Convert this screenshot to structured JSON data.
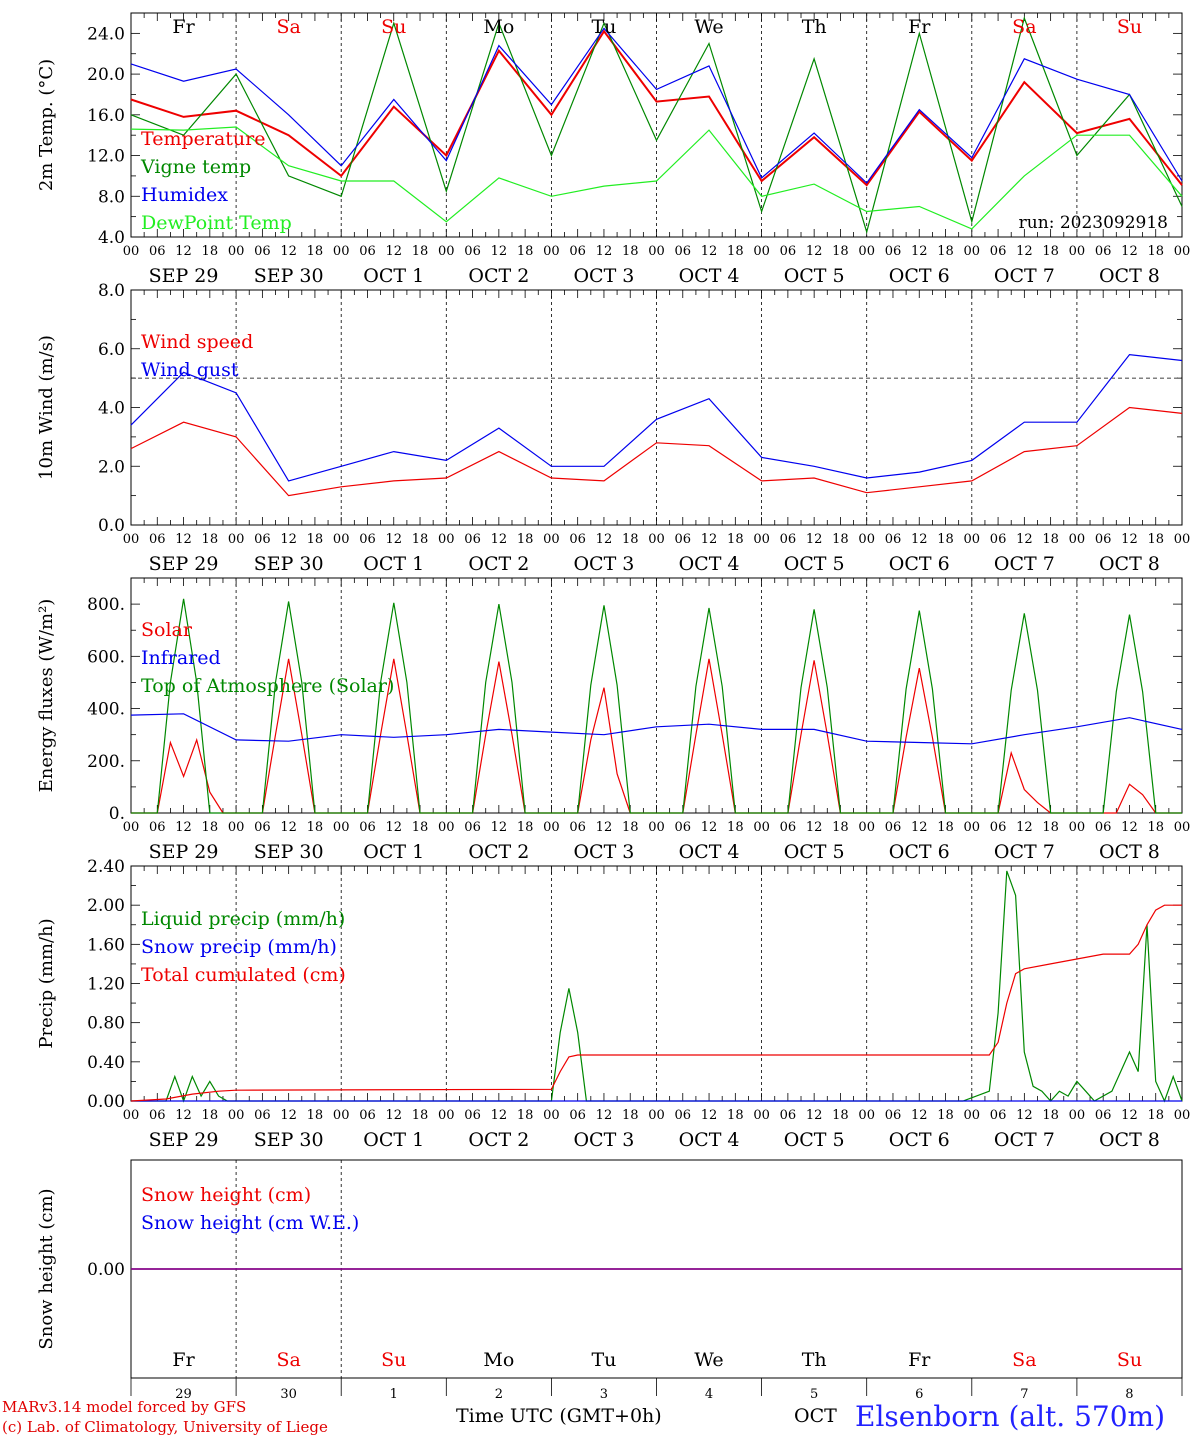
{
  "colors": {
    "red": "#ee0000",
    "green": "#008800",
    "blue": "#0000ee",
    "lightgreen": "#22ee22",
    "purple": "#880088",
    "weekend": "#ee0000",
    "weekday": "#000000"
  },
  "hour_ticks": [
    "00",
    "06",
    "12",
    "18"
  ],
  "date_labels": [
    "SEP 29",
    "SEP 30",
    "OCT  1",
    "OCT  2",
    "OCT  3",
    "OCT  4",
    "OCT  5",
    "OCT  6",
    "OCT  7",
    "OCT  8"
  ],
  "day_names": [
    {
      "name": "Fr",
      "weekend": false
    },
    {
      "name": "Sa",
      "weekend": true
    },
    {
      "name": "Su",
      "weekend": true
    },
    {
      "name": "Mo",
      "weekend": false
    },
    {
      "name": "Tu",
      "weekend": false
    },
    {
      "name": "We",
      "weekend": false
    },
    {
      "name": "Th",
      "weekend": false
    },
    {
      "name": "Fr",
      "weekend": false
    },
    {
      "name": "Sa",
      "weekend": true
    },
    {
      "name": "Su",
      "weekend": true
    }
  ],
  "day_numbers": [
    "29",
    "30",
    "1",
    "2",
    "3",
    "4",
    "5",
    "6",
    "7",
    "8"
  ],
  "footer": {
    "credit_line1": "MARv3.14 model forced by GFS",
    "credit_line2": "(c) Lab. of Climatology, University of Liege",
    "x_axis_title": "Time UTC (GMT+0h)",
    "month": "OCT",
    "station": "Elsenborn (alt. 570m)"
  },
  "chart_data": [
    {
      "type": "line",
      "ylabel": "2m Temp. (°C)",
      "ylim": [
        4,
        26
      ],
      "yticks": [
        "4.0",
        "8.0",
        "12.0",
        "16.0",
        "20.0",
        "24.0"
      ],
      "annotation": "run: 2023092918",
      "x": [
        0,
        12,
        24,
        36,
        48,
        60,
        72,
        84,
        96,
        108,
        120,
        132,
        144,
        156,
        168,
        180,
        192,
        204,
        216,
        228,
        240
      ],
      "series": [
        {
          "name": "Temperature",
          "color": "red",
          "values": [
            17.5,
            15.8,
            16.4,
            14.0,
            10.0,
            16.8,
            12.0,
            22.3,
            16.0,
            24.2,
            17.3,
            17.8,
            9.5,
            13.8,
            9.1,
            16.3,
            11.5,
            19.2,
            14.2,
            15.6,
            9.1
          ]
        },
        {
          "name": "Vigne temp",
          "color": "green",
          "values": [
            16.0,
            14.0,
            20.0,
            10.0,
            8.0,
            25.0,
            8.5,
            25.0,
            12.0,
            25.0,
            13.5,
            23.0,
            6.5,
            21.5,
            4.5,
            24.0,
            5.5,
            25.5,
            12.0,
            18.0,
            7.0
          ]
        },
        {
          "name": "Humidex",
          "color": "blue",
          "values": [
            21.0,
            19.3,
            20.5,
            16.0,
            11.0,
            17.5,
            11.5,
            22.8,
            17.0,
            24.5,
            18.5,
            20.8,
            9.8,
            14.2,
            9.3,
            16.5,
            11.8,
            21.5,
            19.5,
            18.0,
            9.5
          ]
        },
        {
          "name": "DewPoint Temp",
          "color": "lightgreen",
          "values": [
            14.6,
            14.5,
            14.8,
            11.0,
            9.5,
            9.5,
            5.5,
            9.8,
            8.0,
            9.0,
            9.5,
            14.5,
            8.0,
            9.2,
            6.5,
            7.0,
            4.8,
            10.0,
            14.0,
            14.0,
            8.0
          ]
        }
      ]
    },
    {
      "type": "line",
      "ylabel": "10m Wind (m/s)",
      "ylim": [
        0,
        8
      ],
      "yticks": [
        "0.0",
        "2.0",
        "4.0",
        "6.0",
        "8.0"
      ],
      "reference_line": 5.0,
      "x": [
        0,
        12,
        24,
        36,
        48,
        60,
        72,
        84,
        96,
        108,
        120,
        132,
        144,
        156,
        168,
        180,
        192,
        204,
        216,
        228,
        240
      ],
      "series": [
        {
          "name": "Wind speed",
          "color": "red",
          "values": [
            2.6,
            3.5,
            3.0,
            1.0,
            1.3,
            1.5,
            1.6,
            2.5,
            1.6,
            1.5,
            2.8,
            2.7,
            1.5,
            1.6,
            1.1,
            1.3,
            1.5,
            2.5,
            2.7,
            4.0,
            3.8
          ]
        },
        {
          "name": "Wind gust",
          "color": "blue",
          "values": [
            3.4,
            5.2,
            4.5,
            1.5,
            2.0,
            2.5,
            2.2,
            3.3,
            2.0,
            2.0,
            3.6,
            4.3,
            2.3,
            2.0,
            1.6,
            1.8,
            2.2,
            3.5,
            3.5,
            5.8,
            5.6
          ]
        }
      ]
    },
    {
      "type": "line",
      "ylabel": "Energy fluxes (W/m²)",
      "ylim": [
        0,
        900
      ],
      "yticks": [
        "0.",
        "200.",
        "400.",
        "600.",
        "800."
      ],
      "x": [
        0,
        6,
        9,
        12,
        15,
        18,
        21,
        24,
        30,
        33,
        36,
        39,
        42,
        45,
        48,
        54,
        57,
        60,
        63,
        66,
        69,
        72,
        78,
        81,
        84,
        87,
        90,
        93,
        96,
        102,
        105,
        108,
        111,
        114,
        117,
        120,
        126,
        129,
        132,
        135,
        138,
        141,
        144,
        150,
        153,
        156,
        159,
        162,
        165,
        168,
        174,
        177,
        180,
        183,
        186,
        189,
        192,
        198,
        201,
        204,
        207,
        210,
        213,
        216,
        222,
        225,
        228,
        231,
        234,
        237,
        240
      ],
      "series": [
        {
          "name": "Solar",
          "color": "red",
          "values": [
            0,
            0,
            270,
            140,
            280,
            80,
            0,
            0,
            0,
            300,
            590,
            300,
            0,
            0,
            0,
            0,
            300,
            590,
            300,
            0,
            0,
            0,
            0,
            300,
            580,
            300,
            0,
            0,
            0,
            0,
            280,
            480,
            150,
            0,
            0,
            0,
            0,
            300,
            590,
            300,
            0,
            0,
            0,
            0,
            300,
            585,
            300,
            0,
            0,
            0,
            0,
            290,
            555,
            290,
            0,
            0,
            0,
            0,
            230,
            90,
            40,
            0,
            0,
            0,
            0,
            0,
            110,
            70,
            0,
            0,
            0
          ]
        },
        {
          "name": "Top of Atmosphere (Solar)",
          "color": "green",
          "values": [
            0,
            0,
            500,
            820,
            500,
            0,
            0,
            0,
            0,
            500,
            810,
            500,
            0,
            0,
            0,
            0,
            500,
            805,
            500,
            0,
            0,
            0,
            0,
            500,
            800,
            500,
            0,
            0,
            0,
            0,
            490,
            795,
            490,
            0,
            0,
            0,
            0,
            485,
            785,
            485,
            0,
            0,
            0,
            0,
            480,
            780,
            480,
            0,
            0,
            0,
            0,
            475,
            775,
            475,
            0,
            0,
            0,
            0,
            470,
            765,
            470,
            0,
            0,
            0,
            0,
            465,
            760,
            465,
            0,
            0,
            0
          ]
        }
      ],
      "infrared": {
        "name": "Infrared",
        "color": "blue",
        "x": [
          0,
          12,
          24,
          36,
          48,
          60,
          72,
          84,
          96,
          108,
          120,
          132,
          144,
          156,
          168,
          180,
          192,
          204,
          216,
          228,
          240
        ],
        "values": [
          375,
          380,
          280,
          275,
          300,
          290,
          300,
          320,
          310,
          300,
          330,
          340,
          320,
          320,
          275,
          270,
          265,
          300,
          330,
          365,
          320
        ]
      }
    },
    {
      "type": "line",
      "ylabel": "Precip (mm/h)",
      "ylim": [
        0,
        2.4
      ],
      "yticks": [
        "0.00",
        "0.40",
        "0.80",
        "1.20",
        "1.60",
        "2.00",
        "2.40"
      ],
      "series": [
        {
          "name": "Liquid precip (mm/h)",
          "color": "green",
          "x": [
            0,
            8,
            10,
            12,
            14,
            16,
            18,
            20,
            22,
            24,
            96,
            98,
            100,
            102,
            104,
            106,
            190,
            196,
            198,
            200,
            202,
            204,
            206,
            208,
            210,
            212,
            214,
            216,
            218,
            220,
            224,
            228,
            230,
            232,
            234,
            236,
            238,
            240
          ],
          "values": [
            0,
            0,
            0.25,
            0.0,
            0.25,
            0.05,
            0.2,
            0.05,
            0.0,
            0,
            0,
            0.7,
            1.15,
            0.7,
            0.0,
            0,
            0,
            0.1,
            0.9,
            2.35,
            2.1,
            0.5,
            0.15,
            0.1,
            0.0,
            0.1,
            0.05,
            0.2,
            0.1,
            0.0,
            0.1,
            0.5,
            0.3,
            1.8,
            0.2,
            0.0,
            0.25,
            0
          ]
        },
        {
          "name": "Snow precip (mm/h)",
          "color": "blue",
          "x": [
            0,
            240
          ],
          "values": [
            0,
            0
          ]
        },
        {
          "name": "Total cumulated (cm)",
          "color": "red",
          "x": [
            0,
            8,
            14,
            20,
            24,
            96,
            98,
            100,
            102,
            108,
            144,
            168,
            196,
            198,
            200,
            202,
            204,
            210,
            216,
            222,
            228,
            230,
            232,
            234,
            236,
            240
          ],
          "values": [
            0,
            0.02,
            0.07,
            0.1,
            0.11,
            0.12,
            0.3,
            0.45,
            0.47,
            0.47,
            0.47,
            0.47,
            0.47,
            0.6,
            1.0,
            1.3,
            1.35,
            1.4,
            1.45,
            1.5,
            1.5,
            1.6,
            1.8,
            1.95,
            2.0,
            2.0
          ]
        }
      ]
    },
    {
      "type": "line",
      "ylabel": "Snow height (cm)",
      "ylim": [
        -1,
        1
      ],
      "yticks": [
        "0.00"
      ],
      "x": [
        0,
        240
      ],
      "series": [
        {
          "name": "Snow height (cm)",
          "color": "red",
          "values": [
            0,
            0
          ]
        },
        {
          "name": "Snow height (cm W.E.)",
          "color": "blue",
          "values": [
            0,
            0
          ]
        }
      ]
    }
  ]
}
